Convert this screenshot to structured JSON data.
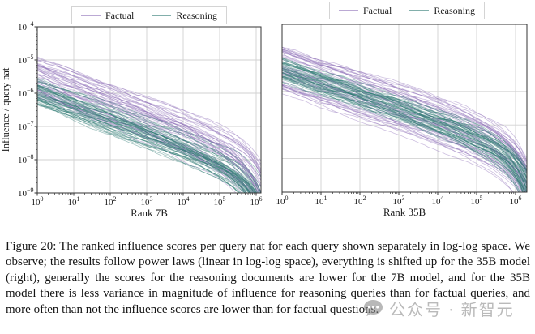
{
  "figure": {
    "caption": "Figure 20: The ranked influence scores per query nat for each query shown separately in log-log space. We observe; the results follow power laws (linear in log-log space), everything is shifted up for the 35B model (right), generally the scores for the reasoning documents are lower for the 7B model, and for the 35B model there is less variance in magnitude of influence for reasoning queries than for factual queries, and more often than not the influence scores are lower than for factual questions."
  },
  "watermark": {
    "icon": "chat-bubble-icon",
    "text": "公众号 · 新智元",
    "color": "#828282"
  },
  "style_colors": {
    "factual": "#8d6fb8",
    "reasoning": "#2f7a73",
    "grid": "#d2d2d2",
    "spine": "#333333"
  },
  "chart_data": [
    {
      "type": "line",
      "title": "",
      "xlabel": "Rank 7B",
      "ylabel": "Influence / query nat",
      "xscale": "log",
      "yscale": "log",
      "xlim": [
        1,
        2000000
      ],
      "ylim": [
        1e-09,
        0.0001
      ],
      "x_tick_labels": [
        "10^0",
        "10^1",
        "10^2",
        "10^3",
        "10^4",
        "10^5",
        "10^6"
      ],
      "y_tick_labels": [
        "10^-4",
        "10^-5",
        "10^-6",
        "10^-7",
        "10^-8",
        "10^-9"
      ],
      "x_tick_exponents": [
        0,
        1,
        2,
        3,
        4,
        5,
        6
      ],
      "y_tick_exponents": [
        -4,
        -5,
        -6,
        -7,
        -8,
        -9
      ],
      "grid": true,
      "legend_position": "above",
      "legend_entries": [
        "Factual",
        "Reasoning"
      ],
      "series_groups": [
        {
          "name": "Factual",
          "color": "#8d6fb8",
          "opacity": 0.45,
          "n_lines": 48,
          "intercept_log10_range": [
            -6.15,
            -4.9
          ],
          "slope_per_decade_range": [
            0.36,
            0.46
          ],
          "tail_drop_decades_range": [
            0.6,
            1.5
          ],
          "seed": 101
        },
        {
          "name": "Reasoning",
          "color": "#2f7a73",
          "opacity": 0.45,
          "n_lines": 48,
          "intercept_log10_range": [
            -6.4,
            -5.6
          ],
          "slope_per_decade_range": [
            0.36,
            0.45
          ],
          "tail_drop_decades_range": [
            0.6,
            1.5
          ],
          "seed": 202
        }
      ]
    },
    {
      "type": "line",
      "title": "",
      "xlabel": "Rank 35B",
      "ylabel": "",
      "xscale": "log",
      "yscale": "log",
      "xlim": [
        1,
        2000000
      ],
      "ylim": [
        1e-09,
        0.0001
      ],
      "x_tick_labels": [
        "10^0",
        "10^1",
        "10^2",
        "10^3",
        "10^4",
        "10^5",
        "10^6"
      ],
      "y_tick_labels": [],
      "x_tick_exponents": [
        0,
        1,
        2,
        3,
        4,
        5,
        6
      ],
      "y_tick_exponents": [
        -4,
        -5,
        -6,
        -7,
        -8,
        -9
      ],
      "grid": true,
      "legend_position": "above",
      "legend_entries": [
        "Factual",
        "Reasoning"
      ],
      "series_groups": [
        {
          "name": "Factual",
          "color": "#8d6fb8",
          "opacity": 0.45,
          "n_lines": 48,
          "intercept_log10_range": [
            -6.05,
            -4.65
          ],
          "slope_per_decade_range": [
            0.34,
            0.44
          ],
          "tail_drop_decades_range": [
            0.6,
            1.5
          ],
          "seed": 303
        },
        {
          "name": "Reasoning",
          "color": "#2f7a73",
          "opacity": 0.45,
          "n_lines": 48,
          "intercept_log10_range": [
            -5.7,
            -5.05
          ],
          "slope_per_decade_range": [
            0.35,
            0.42
          ],
          "tail_drop_decades_range": [
            0.6,
            1.5
          ],
          "seed": 404
        }
      ]
    }
  ]
}
